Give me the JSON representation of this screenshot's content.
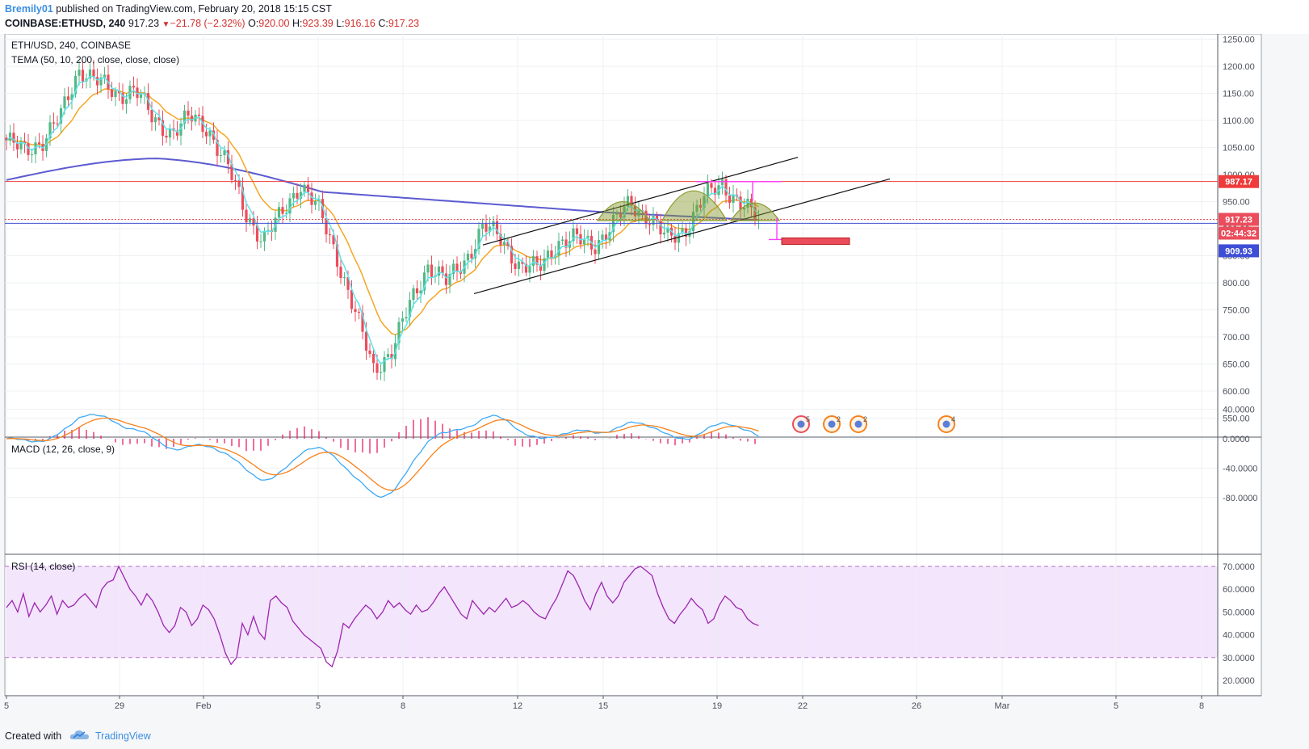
{
  "header": {
    "author": "Bremily01",
    "published_text": "published on TradingView.com, February 20, 2018 15:15 CST",
    "symbol": "COINBASE:ETHUSD, 240",
    "last": "917.23",
    "change": "−21.78 (−2.32%)",
    "o_label": "O:",
    "o_value": "920.00",
    "h_label": "H:",
    "h_value": "923.39",
    "l_label": "L:",
    "l_value": "916.16",
    "c_label": "C:",
    "c_value": "917.23"
  },
  "footer": {
    "created_with": "Created with",
    "brand": "TradingView"
  },
  "colors": {
    "up": "#53b987",
    "down": "#eb4d5c",
    "tema_fast": "#5ee3ea",
    "tema_mid": "#f5a623",
    "tema_slow": "#5c5bd1",
    "macd": "#3fa9f5",
    "signal": "#f7821b",
    "hist": "#e91e63",
    "rsi": "#9c27b0",
    "resistance": "#ef3b3b",
    "support": "#3f4ed6",
    "pattern": "#8a9a2f",
    "projection": "#ff3eff"
  },
  "chart_data": [
    {
      "type": "candlestick",
      "title": "ETH/USD, 240, COINBASE",
      "indicator_label": "TEMA (50, 10, 200, close, close, close)",
      "x_tick_labels": [
        "5",
        "29",
        "Feb",
        "5",
        "8",
        "12",
        "15",
        "19",
        "22",
        "26",
        "Mar",
        "5",
        "8"
      ],
      "y_ticks": [
        550,
        600,
        650,
        700,
        750,
        800,
        850,
        900,
        950,
        1000,
        1050,
        1100,
        1150,
        1200,
        1250
      ],
      "y_tick_labels": [
        "550.00",
        "600.00",
        "650.00",
        "700.00",
        "750.00",
        "800.00",
        "850.00",
        "900.00",
        "950.00",
        "1000.00",
        "1050.00",
        "1100.00",
        "1150.00",
        "1200.00",
        "1250.00"
      ],
      "ylim": [
        535,
        1262
      ],
      "price_labels": [
        {
          "name": "resistance",
          "value": 987.17,
          "text": "987.17"
        },
        {
          "name": "last",
          "value": 917.23,
          "text": "917.23"
        },
        {
          "name": "countdown",
          "value": 917.23,
          "text": "02:44:32"
        },
        {
          "name": "support",
          "value": 909.93,
          "text": "909.93"
        }
      ],
      "key_close_values": [
        1063,
        1042,
        1065,
        1110,
        1198,
        1172,
        1145,
        1162,
        1098,
        1080,
        1105,
        1085,
        1020,
        930,
        880,
        925,
        985,
        935,
        850,
        745,
        640,
        675,
        760,
        835,
        800,
        842,
        905,
        880,
        830,
        825,
        875,
        880,
        870,
        905,
        948,
        922,
        880,
        900,
        955,
        985,
        945,
        917
      ],
      "event_badges": [
        "5",
        "2",
        "2",
        "4"
      ]
    },
    {
      "type": "line",
      "title": "MACD (12, 26, close, 9)",
      "series": [
        {
          "name": "MACD"
        },
        {
          "name": "Signal"
        },
        {
          "name": "Histogram"
        }
      ],
      "y_ticks": [
        40,
        0,
        -40,
        -80
      ],
      "y_tick_labels": [
        "40.0000",
        "0.0000",
        "-40.0000",
        "-80.0000"
      ],
      "ylim": [
        -100,
        45
      ]
    },
    {
      "type": "line",
      "title": "RSI (14, close)",
      "y_ticks": [
        70,
        60,
        50,
        40,
        30,
        20
      ],
      "y_tick_labels": [
        "70.0000",
        "60.0000",
        "50.0000",
        "40.0000",
        "30.0000",
        "20.0000"
      ],
      "band": [
        30,
        70
      ],
      "ylim": [
        19,
        74
      ],
      "values": [
        52,
        55,
        50,
        58,
        48,
        54,
        50,
        53,
        57,
        49,
        55,
        52,
        53,
        56,
        58,
        55,
        52,
        60,
        63,
        64,
        70,
        65,
        60,
        57,
        53,
        58,
        55,
        50,
        44,
        41,
        44,
        52,
        50,
        44,
        47,
        53,
        51,
        47,
        40,
        32,
        27,
        30,
        45,
        40,
        48,
        41,
        38,
        55,
        57,
        54,
        52,
        46,
        43,
        40,
        38,
        36,
        34,
        28,
        26,
        33,
        45,
        43,
        47,
        50,
        53,
        51,
        47,
        50,
        55,
        52,
        54,
        51,
        49,
        53,
        50,
        51,
        54,
        58,
        61,
        57,
        53,
        49,
        47,
        55,
        52,
        49,
        52,
        50,
        53,
        56,
        52,
        53,
        55,
        53,
        50,
        48,
        47,
        52,
        56,
        62,
        68,
        66,
        61,
        55,
        51,
        58,
        63,
        57,
        54,
        57,
        63,
        66,
        69,
        70,
        68,
        66,
        58,
        52,
        47,
        45,
        49,
        52,
        56,
        53,
        51,
        45,
        47,
        53,
        57,
        55,
        52,
        51,
        47,
        45,
        44
      ]
    }
  ]
}
